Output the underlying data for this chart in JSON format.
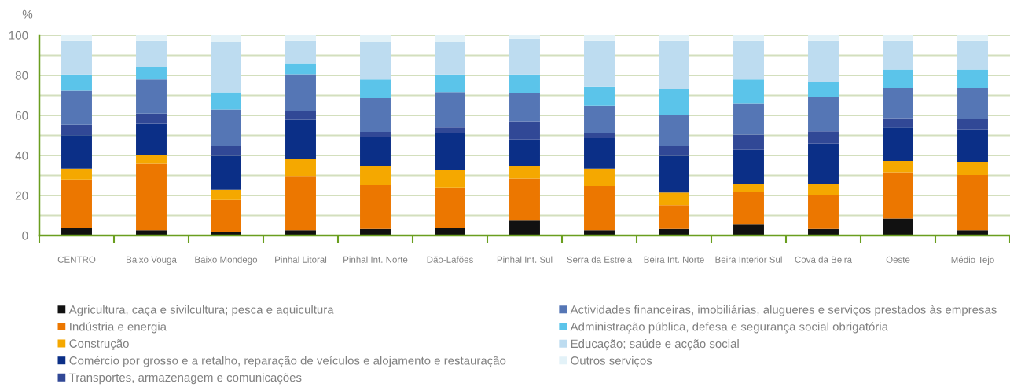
{
  "chart_data": {
    "type": "bar",
    "stacked": true,
    "ylabel": "%",
    "categories": [
      "CENTRO",
      "Baixo Vouga",
      "Baixo Mondego",
      "Pinhal Litoral",
      "Pinhal Int. Norte",
      "Dão-Lafões",
      "Pinhal Int. Sul",
      "Serra da Estrela",
      "Beira Int. Norte",
      "Beira Interior Sul",
      "Cova da Beira",
      "Oeste",
      "Médio Tejo"
    ],
    "series": [
      {
        "name": "Agricultura, caça e sivilcultura; pesca e aquicultura",
        "color": "#111111",
        "values": [
          3.7,
          2.6,
          1.8,
          2.6,
          3.2,
          3.7,
          7.7,
          2.6,
          3.2,
          5.8,
          3.2,
          8.4,
          2.6
        ]
      },
      {
        "name": "Indústria e energia",
        "color": "#ec7700",
        "values": [
          24.2,
          33.3,
          15.9,
          27.1,
          21.9,
          20.3,
          20.7,
          22.1,
          12.0,
          16.2,
          17.0,
          23.2,
          27.6
        ]
      },
      {
        "name": "Construção",
        "color": "#f5a800",
        "values": [
          5.5,
          4.3,
          5.1,
          8.7,
          9.6,
          8.8,
          6.3,
          8.7,
          6.3,
          3.8,
          5.6,
          5.7,
          6.4
        ]
      },
      {
        "name": "Comércio por grosso e a retalho, reparação de veículos e alojamento e restauração",
        "color": "#0b2f87",
        "values": [
          16.7,
          15.7,
          16.9,
          19.4,
          14.4,
          18.2,
          13.2,
          15.2,
          18.2,
          17.0,
          20.2,
          16.7,
          16.4
        ]
      },
      {
        "name": "Transportes, armazenagem e comunicações",
        "color": "#314896",
        "values": [
          5.3,
          5.0,
          5.0,
          4.4,
          2.7,
          3.0,
          9.2,
          2.4,
          5.0,
          7.6,
          6.1,
          4.6,
          5.0
        ]
      },
      {
        "name": "Actividades financeiras, imobiliárias, alugueres e serviços prestados às empresas",
        "color": "#5576b5",
        "values": [
          17.0,
          17.0,
          18.2,
          18.4,
          16.8,
          17.7,
          13.9,
          13.8,
          15.7,
          15.7,
          17.1,
          15.1,
          15.7
        ]
      },
      {
        "name": "Administração pública, defesa e segurança social obrigatória",
        "color": "#5bc4ea",
        "values": [
          8.1,
          6.4,
          8.7,
          5.5,
          9.3,
          8.8,
          9.5,
          9.4,
          12.5,
          11.8,
          7.5,
          9.2,
          9.2
        ]
      },
      {
        "name": "Educação; saúde e acção social",
        "color": "#bddcf0",
        "values": [
          16.9,
          13.1,
          25.1,
          11.3,
          18.9,
          16.3,
          17.6,
          23.2,
          24.5,
          19.5,
          20.7,
          14.5,
          14.5
        ]
      },
      {
        "name": "Outros serviços",
        "color": "#e3f2f8",
        "values": [
          2.6,
          2.6,
          3.3,
          2.6,
          3.2,
          3.2,
          1.9,
          2.6,
          2.6,
          2.6,
          2.6,
          2.6,
          2.6
        ]
      }
    ],
    "ylim": [
      0,
      100
    ],
    "yticks": [
      0,
      {
        "value": 10,
        "label": null
      },
      20,
      {
        "value": 30,
        "label": null
      },
      40,
      {
        "value": 50,
        "label": null
      },
      60,
      {
        "value": 70,
        "label": null
      },
      80,
      {
        "value": 90,
        "label": null
      },
      100
    ],
    "grid": "y",
    "legend": "bottom"
  }
}
